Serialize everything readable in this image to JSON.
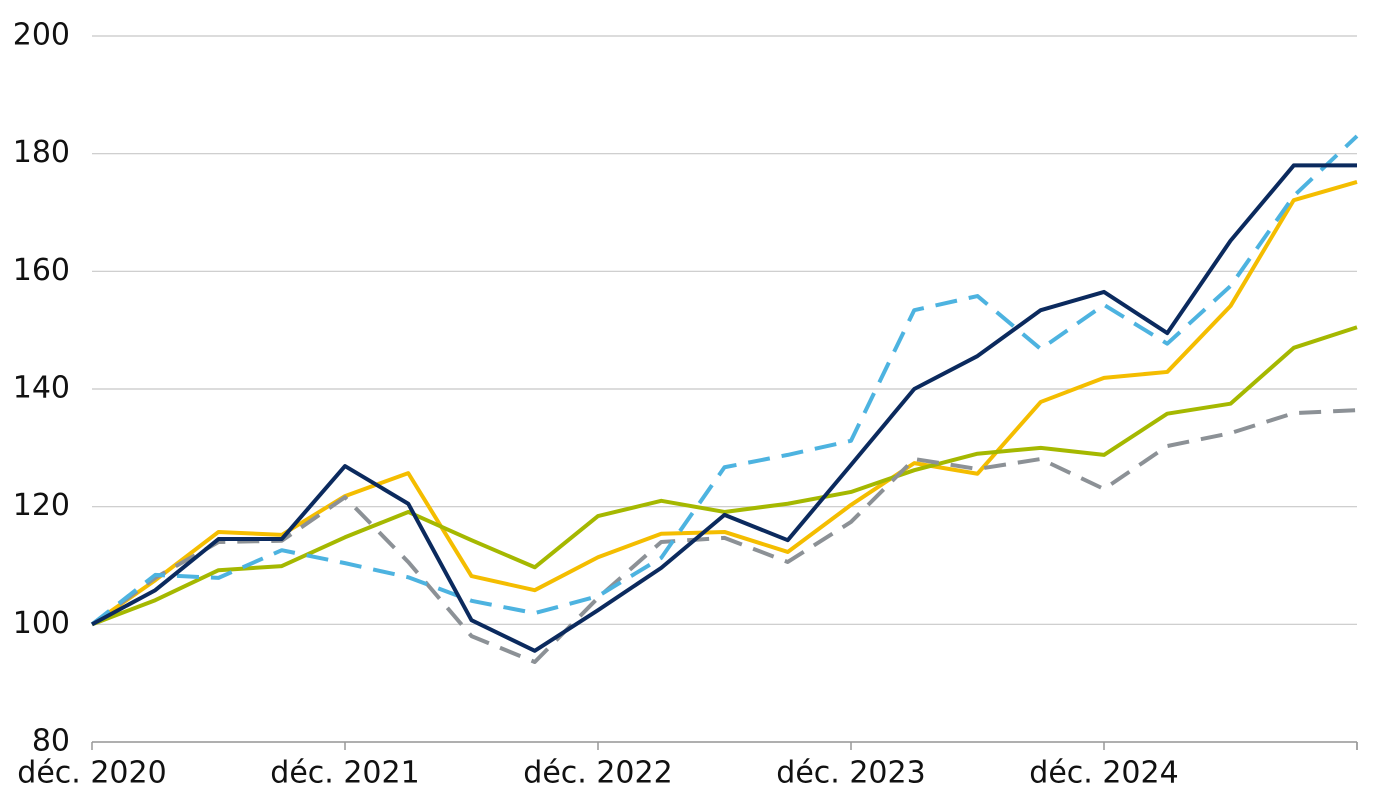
{
  "chart_data": {
    "type": "line",
    "categories": [
      "déc. 2020",
      null,
      null,
      null,
      "déc. 2021",
      null,
      null,
      null,
      "déc. 2022",
      null,
      null,
      null,
      "déc. 2023",
      null,
      null,
      null,
      "déc. 2024",
      null,
      null,
      null,
      null
    ],
    "series": [
      {
        "color": "#f4bd00",
        "dash": false,
        "values": [
          100,
          107.5,
          115.7,
          115.2,
          121.8,
          125.7,
          108.2,
          105.8,
          111.4,
          115.4,
          115.7,
          112.3,
          120.3,
          127.4,
          125.6,
          137.8,
          141.9,
          142.9,
          154.1,
          172.1,
          175.2
        ]
      },
      {
        "color": "#a5b800",
        "dash": false,
        "values": [
          100,
          104.1,
          109.2,
          109.9,
          114.8,
          119.1,
          114.3,
          109.7,
          118.4,
          121,
          119.1,
          120.5,
          122.5,
          126.2,
          129,
          130,
          128.8,
          135.8,
          137.5,
          147,
          150.5
        ]
      },
      {
        "color": "#8c9196",
        "dash": true,
        "values": [
          100,
          107.9,
          114,
          114.2,
          121.6,
          110.6,
          98,
          93.6,
          104.5,
          114,
          114.7,
          110.6,
          117.4,
          128.1,
          126.4,
          128.1,
          123,
          130.3,
          132.5,
          135.9,
          136.4
        ]
      },
      {
        "color": "#4db3e0",
        "dash": true,
        "values": [
          100,
          108.4,
          107.9,
          112.6,
          110.4,
          108,
          104,
          101.9,
          104.8,
          111.3,
          126.7,
          128.8,
          131.2,
          153.4,
          155.8,
          146.8,
          154.3,
          147.7,
          157.5,
          172.8,
          183
        ]
      },
      {
        "color": "#0b2a5e",
        "dash": false,
        "values": [
          100,
          105.8,
          114.5,
          114.5,
          126.9,
          120.5,
          100.7,
          95.5,
          102.4,
          109.6,
          118.6,
          114.3,
          127.1,
          140,
          145.6,
          153.4,
          156.5,
          149.5,
          165.2,
          178,
          178
        ]
      }
    ],
    "ylim": [
      80,
      200
    ],
    "yticks": [
      80,
      100,
      120,
      140,
      160,
      180,
      200
    ],
    "grid": true
  }
}
